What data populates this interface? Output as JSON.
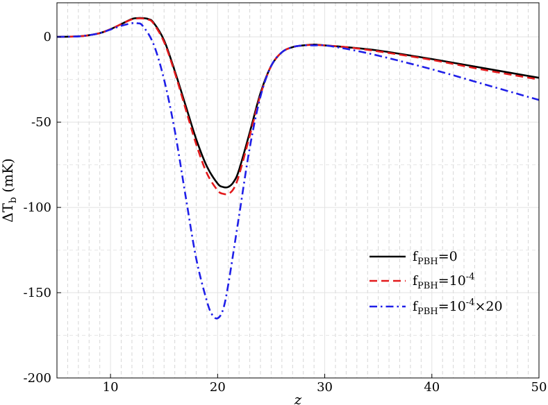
{
  "chart_data": {
    "type": "line",
    "title": "",
    "xlabel": "z",
    "ylabel": {
      "prefix": "ΔT",
      "sub": "b",
      "suffix": " (mK)"
    },
    "xlim": [
      5,
      50
    ],
    "ylim": [
      -200,
      20
    ],
    "x_ticks": [
      10,
      20,
      30,
      40,
      50
    ],
    "y_ticks": [
      0,
      -50,
      -100,
      -150,
      -200
    ],
    "x_tick_labels": [
      "10",
      "20",
      "30",
      "40",
      "50"
    ],
    "y_tick_labels": [
      "0",
      "-50",
      "-100",
      "-150",
      "-200"
    ],
    "grid": true,
    "legend_position": "bottom-right",
    "series": [
      {
        "name": {
          "base": "f",
          "sub": "PBH",
          "rest": "=0"
        },
        "color": "#000000",
        "style": "solid",
        "x": [
          5,
          7,
          8,
          9,
          10,
          11,
          12,
          12.5,
          13,
          13.5,
          14,
          15,
          16,
          17,
          18,
          19,
          20,
          20.5,
          21,
          21.5,
          22,
          23,
          24,
          25,
          26,
          27,
          28,
          29,
          30,
          32,
          35,
          40,
          45,
          50
        ],
        "y": [
          0,
          0.3,
          1,
          2.2,
          4.5,
          7.5,
          10.5,
          11,
          11,
          10.5,
          8.5,
          -2,
          -20,
          -40,
          -60,
          -76,
          -86,
          -88,
          -88,
          -85,
          -78,
          -56,
          -33,
          -17,
          -9,
          -6,
          -5,
          -4.5,
          -5,
          -6,
          -8,
          -13,
          -18.5,
          -24
        ]
      },
      {
        "name": {
          "base": "f",
          "sub": "PBH",
          "rest": "=10",
          "sup": "-4"
        },
        "color": "#e31a1c",
        "style": "dashed",
        "x": [
          5,
          7,
          8,
          9,
          10,
          11,
          12,
          12.5,
          13,
          13.5,
          14,
          15,
          16,
          17,
          18,
          19,
          20,
          20.5,
          21,
          21.5,
          22,
          23,
          24,
          25,
          26,
          27,
          28,
          29,
          30,
          32,
          35,
          40,
          45,
          50
        ],
        "y": [
          0,
          0.3,
          1,
          2.2,
          4.5,
          7.5,
          10.3,
          10.8,
          10.8,
          10.2,
          8,
          -3,
          -21,
          -42,
          -63,
          -80,
          -90,
          -92,
          -92,
          -89,
          -81,
          -58,
          -34,
          -17,
          -9,
          -6,
          -5,
          -4.7,
          -5,
          -6,
          -8.5,
          -13.5,
          -19.5,
          -25
        ]
      },
      {
        "name": {
          "base": "f",
          "sub": "PBH",
          "rest": "=10",
          "sup": "-4",
          "tail": "×20"
        },
        "color": "#1f1fe8",
        "style": "dashdot",
        "x": [
          5,
          7,
          8,
          9,
          10,
          11,
          12,
          12.5,
          13,
          14,
          15,
          16,
          17,
          18,
          19,
          19.5,
          20,
          20.5,
          21,
          22,
          23,
          24,
          25,
          26,
          27,
          28,
          29,
          30,
          32,
          35,
          40,
          45,
          50
        ],
        "y": [
          0,
          0.3,
          1,
          2.2,
          4.3,
          6.5,
          8,
          8,
          6.5,
          -4,
          -25,
          -55,
          -93,
          -130,
          -155,
          -163,
          -165,
          -160,
          -145,
          -105,
          -65,
          -35,
          -17,
          -9,
          -6,
          -5,
          -5,
          -5,
          -7,
          -11,
          -19,
          -28,
          -37
        ]
      }
    ]
  }
}
